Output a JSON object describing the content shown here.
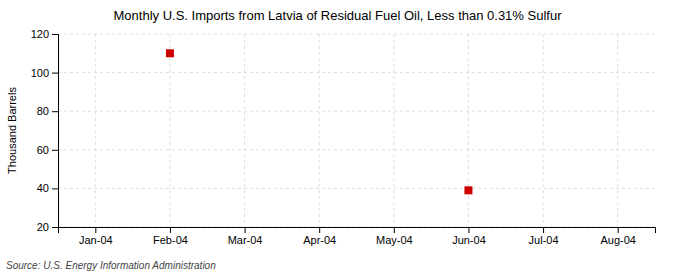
{
  "chart_data": {
    "type": "scatter",
    "title": "Monthly U.S. Imports from Latvia of Residual Fuel Oil, Less than 0.31% Sulfur",
    "ylabel": "Thousand Barrels",
    "source": "Source: U.S. Energy Information Administration",
    "categories": [
      "Jan-04",
      "Feb-04",
      "Mar-04",
      "Apr-04",
      "May-04",
      "Jun-04",
      "Jul-04",
      "Aug-04"
    ],
    "values": [
      null,
      110,
      null,
      null,
      null,
      39,
      null,
      null
    ],
    "color": "#CC0000",
    "marker": "square",
    "ylim": [
      20,
      120
    ],
    "yticks": [
      20,
      40,
      60,
      80,
      100,
      120
    ],
    "grid": true
  }
}
